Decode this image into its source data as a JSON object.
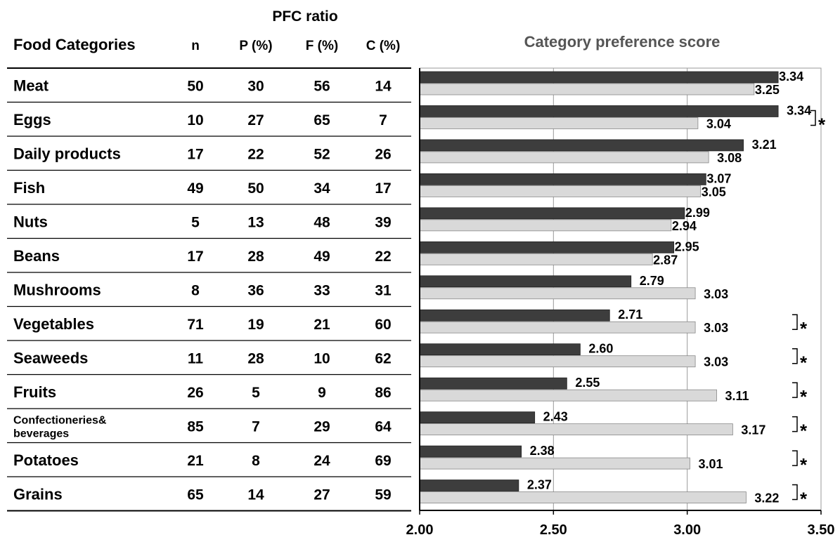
{
  "table": {
    "group_header": "PFC ratio",
    "columns": [
      "Food Categories",
      "n",
      "P (%)",
      "F (%)",
      "C (%)"
    ],
    "rows": [
      {
        "category": "Meat",
        "n": "50",
        "p": "30",
        "f": "56",
        "c": "14"
      },
      {
        "category": "Eggs",
        "n": "10",
        "p": "27",
        "f": "65",
        "c": "7"
      },
      {
        "category": "Daily products",
        "n": "17",
        "p": "22",
        "f": "52",
        "c": "26"
      },
      {
        "category": "Fish",
        "n": "49",
        "p": "50",
        "f": "34",
        "c": "17"
      },
      {
        "category": "Nuts",
        "n": "5",
        "p": "13",
        "f": "48",
        "c": "39"
      },
      {
        "category": "Beans",
        "n": "17",
        "p": "28",
        "f": "49",
        "c": "22"
      },
      {
        "category": "Mushrooms",
        "n": "8",
        "p": "36",
        "f": "33",
        "c": "31"
      },
      {
        "category": "Vegetables",
        "n": "71",
        "p": "19",
        "f": "21",
        "c": "60"
      },
      {
        "category": "Seaweeds",
        "n": "11",
        "p": "28",
        "f": "10",
        "c": "62"
      },
      {
        "category": "Fruits",
        "n": "26",
        "p": "5",
        "f": "9",
        "c": "86"
      },
      {
        "category": [
          "Confectioneries&",
          "beverages"
        ],
        "n": "85",
        "p": "7",
        "f": "29",
        "c": "64"
      },
      {
        "category": "Potatoes",
        "n": "21",
        "p": "8",
        "f": "24",
        "c": "69"
      },
      {
        "category": "Grains",
        "n": "65",
        "p": "14",
        "f": "27",
        "c": "59"
      }
    ]
  },
  "chart_data": {
    "type": "bar",
    "orientation": "horizontal",
    "title": "Category preference score",
    "categories": [
      "Meat",
      "Eggs",
      "Daily products",
      "Fish",
      "Nuts",
      "Beans",
      "Mushrooms",
      "Vegetables",
      "Seaweeds",
      "Fruits",
      "Confectioneries& beverages",
      "Potatoes",
      "Grains"
    ],
    "series": [
      {
        "color": "#3d3d3d",
        "values": [
          3.34,
          3.34,
          3.21,
          3.07,
          2.99,
          2.95,
          2.79,
          2.71,
          2.6,
          2.55,
          2.43,
          2.38,
          2.37
        ]
      },
      {
        "color": "#d9d9d9",
        "values": [
          3.25,
          3.04,
          3.08,
          3.05,
          2.94,
          2.87,
          3.03,
          3.03,
          3.03,
          3.11,
          3.17,
          3.01,
          3.22
        ]
      }
    ],
    "significant": [
      false,
      true,
      false,
      false,
      false,
      false,
      false,
      true,
      true,
      true,
      true,
      true,
      true
    ],
    "significance_marker": "*",
    "xlim": [
      2.0,
      3.5
    ],
    "xticks": [
      "2.00",
      "2.50",
      "3.00",
      "3.50"
    ],
    "grid": "vertical",
    "legend": "none"
  }
}
